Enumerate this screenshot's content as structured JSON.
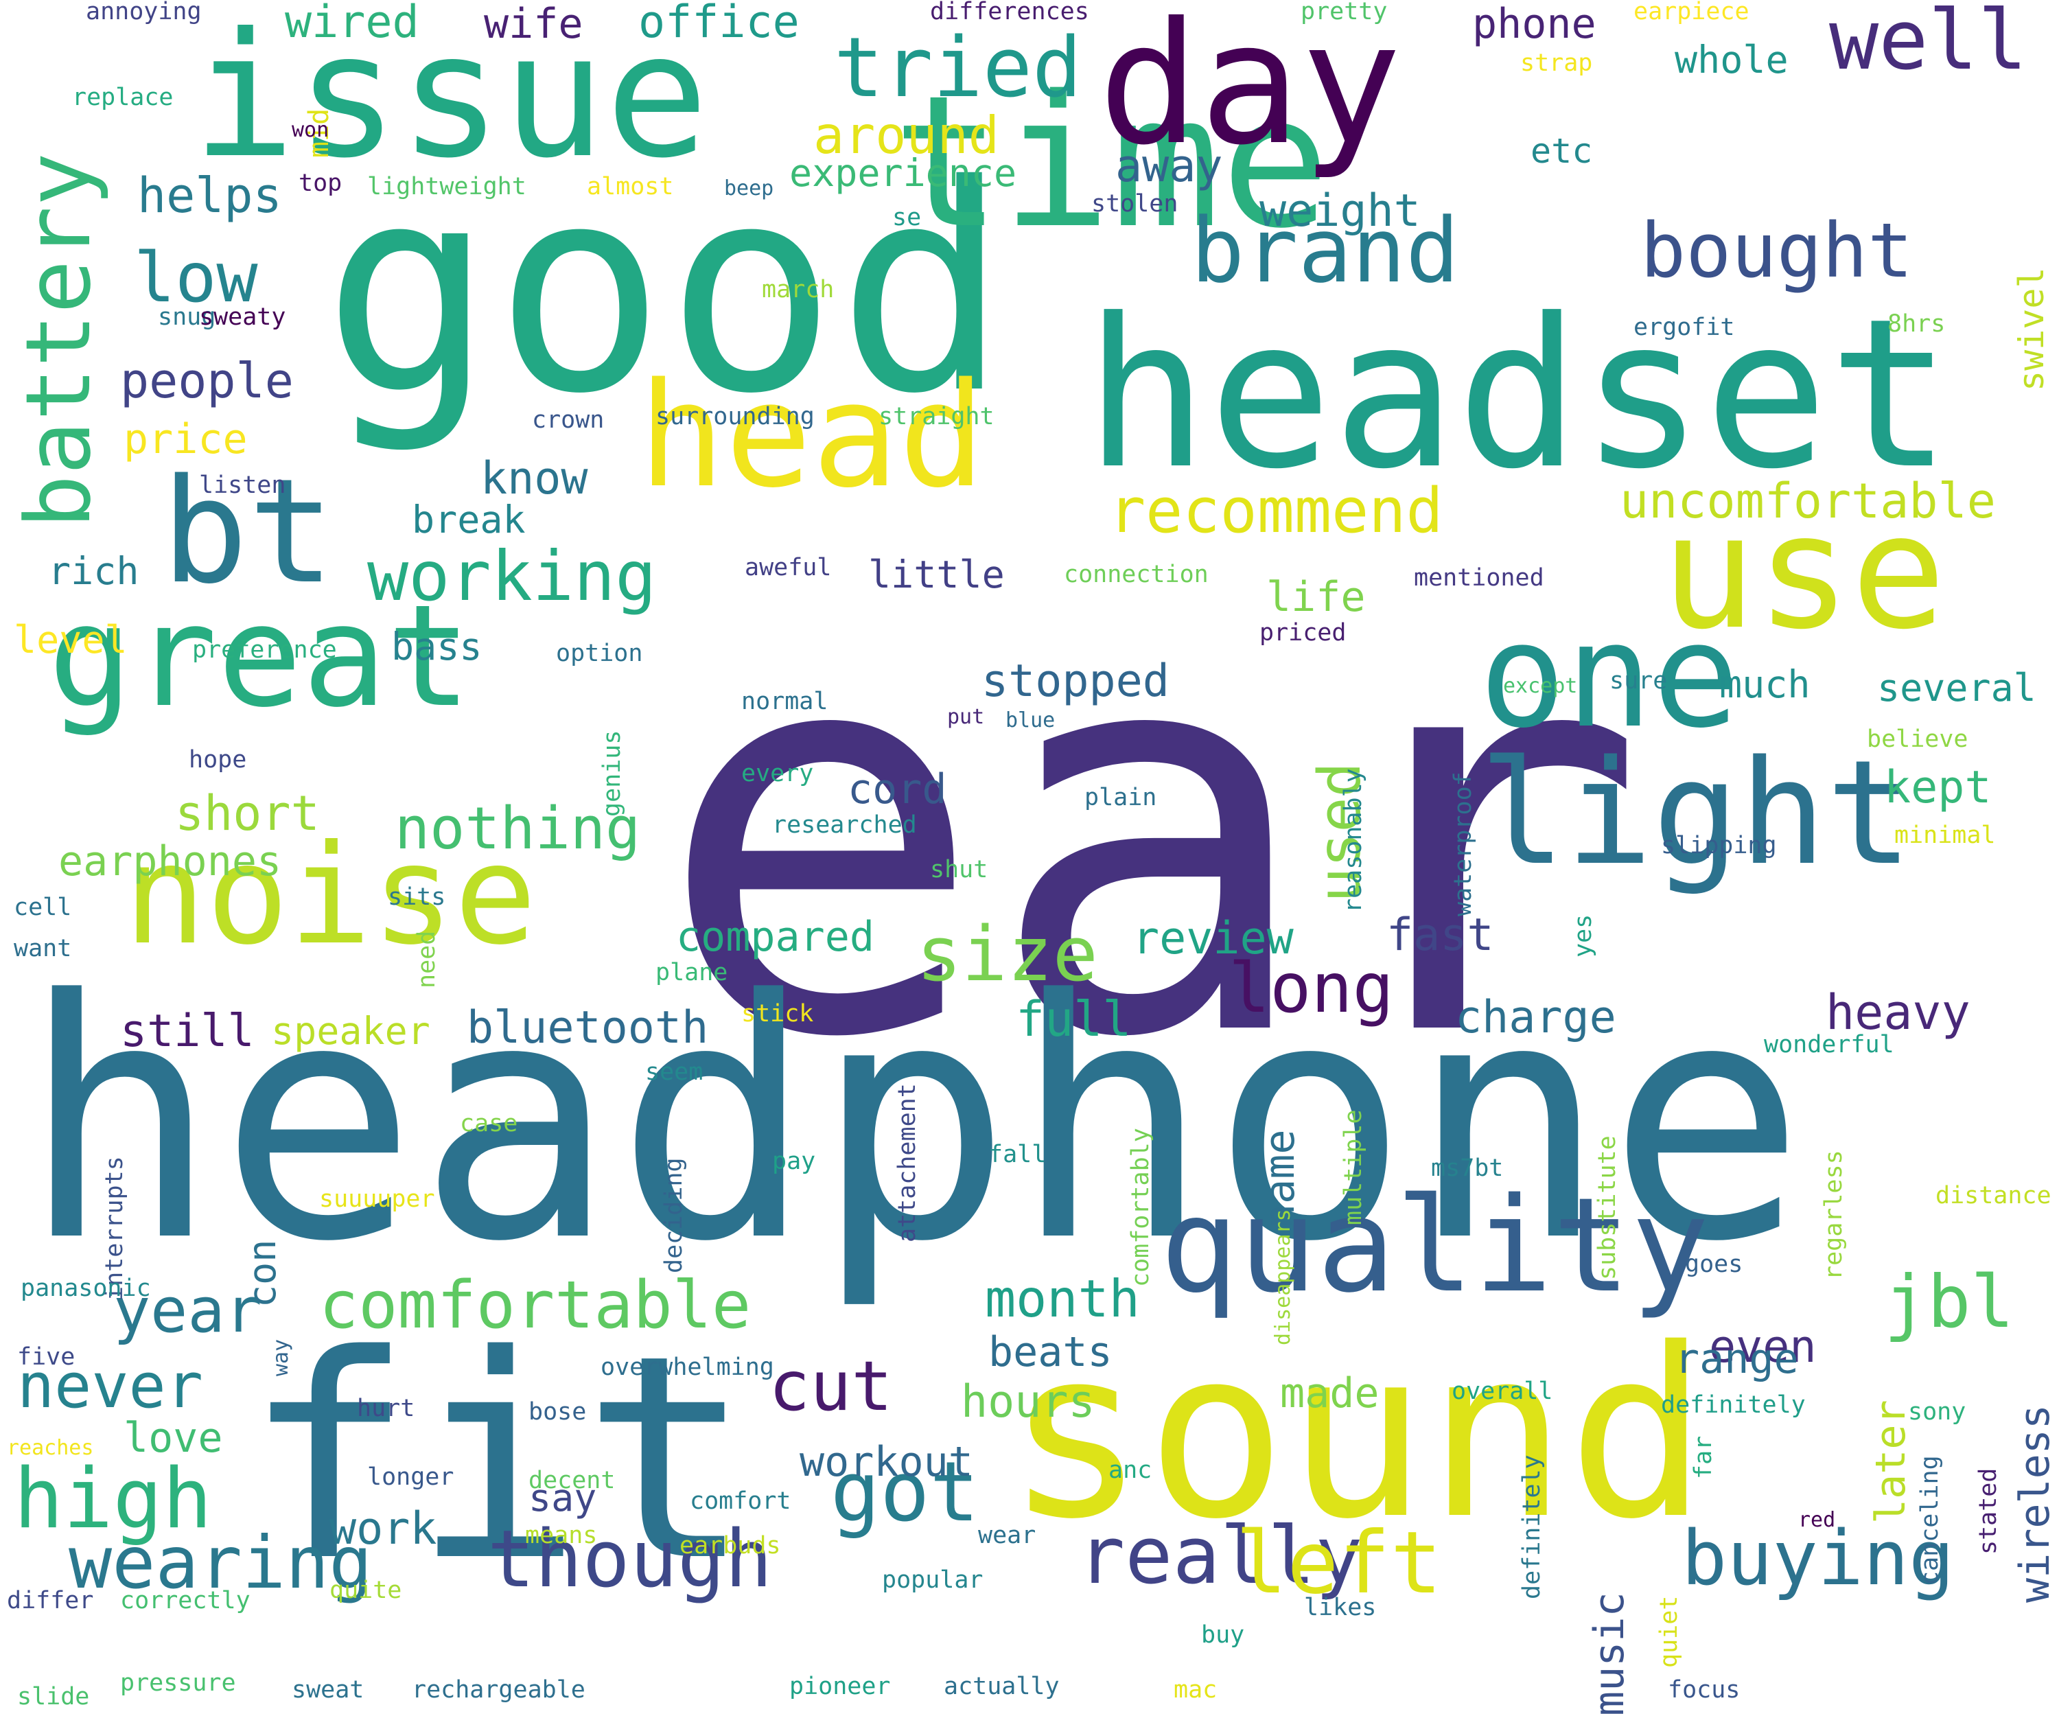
{
  "words": [
    {
      "text": "ear",
      "color": "#46327e"
    },
    {
      "text": "headphone",
      "color": "#2c728e"
    },
    {
      "text": "good",
      "color": "#22a884"
    },
    {
      "text": "time",
      "color": "#2ab07f"
    },
    {
      "text": "headset",
      "color": "#1f9e89"
    },
    {
      "text": "issue",
      "color": "#22a884"
    },
    {
      "text": "day",
      "color": "#440154"
    },
    {
      "text": "sound",
      "color": "#dde318"
    },
    {
      "text": "fit",
      "color": "#2c728e"
    },
    {
      "text": "noise",
      "color": "#bddf26"
    },
    {
      "text": "use",
      "color": "#d0e11c"
    },
    {
      "text": "light",
      "color": "#2c728e"
    },
    {
      "text": "great",
      "color": "#27ad81"
    },
    {
      "text": "one",
      "color": "#21918c"
    },
    {
      "text": "bt",
      "color": "#2a788e"
    },
    {
      "text": "head",
      "color": "#f1e51d"
    },
    {
      "text": "quality",
      "color": "#355f8d"
    },
    {
      "text": "brand",
      "color": "#287c8e"
    },
    {
      "text": "battery",
      "color": "#35b779"
    },
    {
      "text": "well",
      "color": "#472d7b"
    },
    {
      "text": "tried",
      "color": "#1f988b"
    },
    {
      "text": "bought",
      "color": "#3b528b"
    },
    {
      "text": "really",
      "color": "#414487"
    },
    {
      "text": "though",
      "color": "#3e4989"
    },
    {
      "text": "wearing",
      "color": "#2a788e"
    },
    {
      "text": "left",
      "color": "#dde318"
    },
    {
      "text": "buying",
      "color": "#2c728e"
    },
    {
      "text": "comfortable",
      "color": "#5ec962"
    },
    {
      "text": "recommend",
      "color": "#e2e418"
    },
    {
      "text": "working",
      "color": "#25ab82"
    },
    {
      "text": "high",
      "color": "#2db27d"
    },
    {
      "text": "got",
      "color": "#287d8e"
    },
    {
      "text": "jbl",
      "color": "#56c667"
    },
    {
      "text": "cut",
      "color": "#481a6c"
    },
    {
      "text": "year",
      "color": "#2a788e"
    },
    {
      "text": "never",
      "color": "#26828e"
    },
    {
      "text": "long",
      "color": "#471063"
    },
    {
      "text": "size",
      "color": "#7ad151"
    },
    {
      "text": "nothing",
      "color": "#44bf70"
    },
    {
      "text": "uncomfortable",
      "color": "#c2df23"
    },
    {
      "text": "used",
      "color": "#86d549"
    },
    {
      "text": "low",
      "color": "#25848e"
    },
    {
      "text": "around",
      "color": "#e5e419"
    },
    {
      "text": "people",
      "color": "#414487"
    },
    {
      "text": "helps",
      "color": "#297b8e"
    },
    {
      "text": "short",
      "color": "#9bd93c"
    },
    {
      "text": "earphones",
      "color": "#7ad151"
    },
    {
      "text": "weight",
      "color": "#277f8e"
    },
    {
      "text": "experience",
      "color": "#3aba76"
    },
    {
      "text": "away",
      "color": "#33638d"
    },
    {
      "text": "charge",
      "color": "#2d708e"
    },
    {
      "text": "heavy",
      "color": "#482878"
    },
    {
      "text": "full",
      "color": "#22a785"
    },
    {
      "text": "review",
      "color": "#20a486"
    },
    {
      "text": "fast",
      "color": "#404688"
    },
    {
      "text": "month",
      "color": "#1fa088"
    },
    {
      "text": "beats",
      "color": "#2e6d8e"
    },
    {
      "text": "compared",
      "color": "#26ad81"
    },
    {
      "text": "bluetooth",
      "color": "#2f6b8e"
    },
    {
      "text": "still",
      "color": "#481a6c"
    },
    {
      "text": "workout",
      "color": "#31688e"
    },
    {
      "text": "hours",
      "color": "#6ccd5a"
    },
    {
      "text": "made",
      "color": "#7fd34e"
    },
    {
      "text": "even",
      "color": "#46307e"
    },
    {
      "text": "range",
      "color": "#2e6e8e"
    },
    {
      "text": "wireless",
      "color": "#39568c"
    },
    {
      "text": "later",
      "color": "#bade28"
    },
    {
      "text": "music",
      "color": "#3b528b"
    },
    {
      "text": "much",
      "color": "#218f8d"
    },
    {
      "text": "several",
      "color": "#1f968b"
    },
    {
      "text": "kept",
      "color": "#35b779"
    },
    {
      "text": "stopped",
      "color": "#31668e"
    },
    {
      "text": "cord",
      "color": "#38598c"
    },
    {
      "text": "little",
      "color": "#424086"
    },
    {
      "text": "life",
      "color": "#7fd34e"
    },
    {
      "text": "know",
      "color": "#2b748e"
    },
    {
      "text": "break",
      "color": "#24868e"
    },
    {
      "text": "rich",
      "color": "#287d8e"
    },
    {
      "text": "bass",
      "color": "#26828e"
    },
    {
      "text": "level",
      "color": "#fde725"
    },
    {
      "text": "price",
      "color": "#f8e621"
    },
    {
      "text": "love",
      "color": "#40bd72"
    },
    {
      "text": "con",
      "color": "#2c728e"
    },
    {
      "text": "say",
      "color": "#3f4788"
    },
    {
      "text": "work",
      "color": "#2a788e"
    },
    {
      "text": "name",
      "color": "#2d708e"
    },
    {
      "text": "wired",
      "color": "#2db27d"
    },
    {
      "text": "wife",
      "color": "#482173"
    },
    {
      "text": "office",
      "color": "#1f9a8a"
    },
    {
      "text": "phone",
      "color": "#482475"
    },
    {
      "text": "whole",
      "color": "#1f958b"
    },
    {
      "text": "etc",
      "color": "#23898e"
    },
    {
      "text": "swivel",
      "color": "#c0df25"
    },
    {
      "text": "speaker",
      "color": "#bade28"
    },
    {
      "text": "mid",
      "color": "#dfe318"
    },
    {
      "text": "top",
      "color": "#481467"
    },
    {
      "text": "lightweight",
      "color": "#52c569"
    },
    {
      "text": "almost",
      "color": "#f6e620"
    },
    {
      "text": "beep",
      "color": "#2e6d8e"
    },
    {
      "text": "stolen",
      "color": "#3f4788"
    },
    {
      "text": "se",
      "color": "#1f9a8a"
    },
    {
      "text": "march",
      "color": "#a0da39"
    },
    {
      "text": "snug",
      "color": "#2a788e"
    },
    {
      "text": "sweaty",
      "color": "#440154"
    },
    {
      "text": "ergofit",
      "color": "#2f6c8e"
    },
    {
      "text": "8hrs",
      "color": "#7ad151"
    },
    {
      "text": "crown",
      "color": "#39568c"
    },
    {
      "text": "surrounding",
      "color": "#31678e"
    },
    {
      "text": "straight",
      "color": "#4ec36b"
    },
    {
      "text": "listen",
      "color": "#3f4788"
    },
    {
      "text": "aweful",
      "color": "#424086"
    },
    {
      "text": "connection",
      "color": "#6ece58"
    },
    {
      "text": "mentioned",
      "color": "#443983"
    },
    {
      "text": "preference",
      "color": "#29af7f"
    },
    {
      "text": "option",
      "color": "#2c718e"
    },
    {
      "text": "priced",
      "color": "#481f70"
    },
    {
      "text": "except",
      "color": "#48c16e"
    },
    {
      "text": "sure",
      "color": "#27808e"
    },
    {
      "text": "normal",
      "color": "#2c718e"
    },
    {
      "text": "put",
      "color": "#482878"
    },
    {
      "text": "blue",
      "color": "#2f6c8e"
    },
    {
      "text": "genius",
      "color": "#32b67a"
    },
    {
      "text": "reasonably",
      "color": "#23888e"
    },
    {
      "text": "waterproof",
      "color": "#2d708e"
    },
    {
      "text": "believe",
      "color": "#8fd744"
    },
    {
      "text": "hope",
      "color": "#3e4989"
    },
    {
      "text": "every",
      "color": "#25ab82"
    },
    {
      "text": "plain",
      "color": "#2d708e"
    },
    {
      "text": "researched",
      "color": "#23898e"
    },
    {
      "text": "slipping",
      "color": "#365d8d"
    },
    {
      "text": "minimal",
      "color": "#dae319"
    },
    {
      "text": "shut",
      "color": "#50c46a"
    },
    {
      "text": "sits",
      "color": "#2a788e"
    },
    {
      "text": "cell",
      "color": "#2c728e"
    },
    {
      "text": "want",
      "color": "#2e6f8e"
    },
    {
      "text": "need",
      "color": "#7fd34e"
    },
    {
      "text": "plane",
      "color": "#39ba76"
    },
    {
      "text": "yes",
      "color": "#20a386"
    },
    {
      "text": "stick",
      "color": "#f1e51d"
    },
    {
      "text": "seem",
      "color": "#23898e"
    },
    {
      "text": "wonderful",
      "color": "#1fa187"
    },
    {
      "text": "comfortably",
      "color": "#75d054"
    },
    {
      "text": "case",
      "color": "#84d44b"
    },
    {
      "text": "pay",
      "color": "#1fa088"
    },
    {
      "text": "attachement",
      "color": "#3e4989"
    },
    {
      "text": "fall",
      "color": "#21918c"
    },
    {
      "text": "multiple",
      "color": "#7fd34e"
    },
    {
      "text": "interrupts",
      "color": "#3b528b"
    },
    {
      "text": "deciding",
      "color": "#33638d"
    },
    {
      "text": "suuuuper",
      "color": "#e7e419"
    },
    {
      "text": "diseappears",
      "color": "#9dd93b"
    },
    {
      "text": "substitute",
      "color": "#8bd646"
    },
    {
      "text": "ms7bt",
      "color": "#26828e"
    },
    {
      "text": "regarless",
      "color": "#98d83e"
    },
    {
      "text": "distance",
      "color": "#c2df23"
    },
    {
      "text": "panasonic",
      "color": "#23898e"
    },
    {
      "text": "goes",
      "color": "#34618d"
    },
    {
      "text": "five",
      "color": "#3e4a89"
    },
    {
      "text": "way",
      "color": "#32658e"
    },
    {
      "text": "overwhelming",
      "color": "#2e6e8e"
    },
    {
      "text": "overall",
      "color": "#20a486"
    },
    {
      "text": "definitely",
      "color": "#1f9e89"
    },
    {
      "text": "hurt",
      "color": "#3e4989"
    },
    {
      "text": "bose",
      "color": "#34618d"
    },
    {
      "text": "reaches",
      "color": "#f2e51d"
    },
    {
      "text": "decent",
      "color": "#5ec962"
    },
    {
      "text": "longer",
      "color": "#38588c"
    },
    {
      "text": "anc",
      "color": "#23a983"
    },
    {
      "text": "far",
      "color": "#26ad81"
    },
    {
      "text": "sony",
      "color": "#2db27d"
    },
    {
      "text": "comfort",
      "color": "#277e8e"
    },
    {
      "text": "means",
      "color": "#b5de2b"
    },
    {
      "text": "earbuds",
      "color": "#c2df23"
    },
    {
      "text": "wear",
      "color": "#2c718e"
    },
    {
      "text": "red",
      "color": "#440154"
    },
    {
      "text": "definitely",
      "color": "#2a788e"
    },
    {
      "text": "canceling",
      "color": "#31678e"
    },
    {
      "text": "stated",
      "color": "#482071"
    },
    {
      "text": "differ",
      "color": "#3e4a89"
    },
    {
      "text": "correctly",
      "color": "#44bf70"
    },
    {
      "text": "quite",
      "color": "#a5db36"
    },
    {
      "text": "popular",
      "color": "#24868e"
    },
    {
      "text": "likes",
      "color": "#2c718e"
    },
    {
      "text": "buy",
      "color": "#1fa088"
    },
    {
      "text": "quiet",
      "color": "#d8e219"
    },
    {
      "text": "slide",
      "color": "#4ac16d"
    },
    {
      "text": "pressure",
      "color": "#48c16e"
    },
    {
      "text": "sweat",
      "color": "#2c728e"
    },
    {
      "text": "rechargeable",
      "color": "#2e6f8e"
    },
    {
      "text": "pioneer",
      "color": "#1fa187"
    },
    {
      "text": "actually",
      "color": "#2d708e"
    },
    {
      "text": "mac",
      "color": "#e5e419"
    },
    {
      "text": "focus",
      "color": "#39568c"
    },
    {
      "text": "annoying",
      "color": "#414487"
    },
    {
      "text": "differences",
      "color": "#481d6f"
    },
    {
      "text": "pretty",
      "color": "#50c46a"
    },
    {
      "text": "earpiece",
      "color": "#fde725"
    },
    {
      "text": "strap",
      "color": "#f4e61e"
    },
    {
      "text": "replace",
      "color": "#25ac82"
    },
    {
      "text": "won",
      "color": "#440154"
    }
  ]
}
